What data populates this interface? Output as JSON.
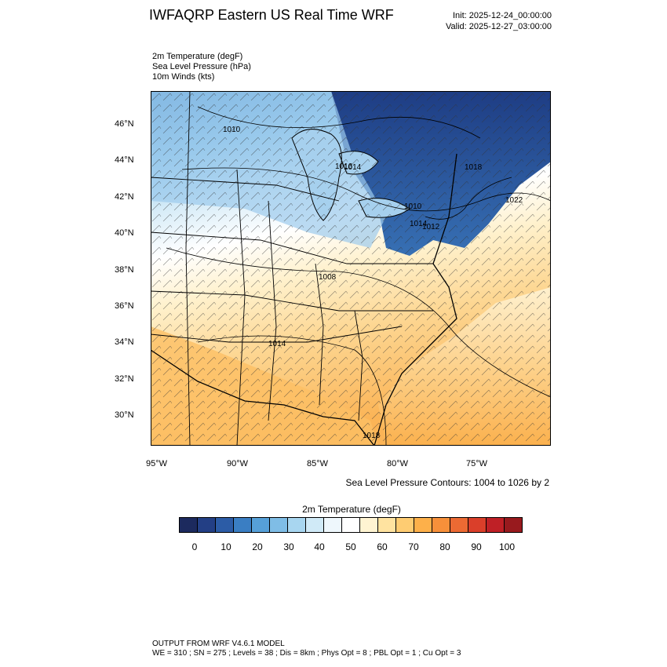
{
  "title": "IWFAQRP Eastern US Real Time WRF",
  "init": "Init: 2025-12-24_00:00:00",
  "valid": "Valid: 2025-12-27_03:00:00",
  "fields": [
    "2m Temperature   (degF)",
    "Sea Level Pressure   (hPa)",
    "10m Winds   (kts)"
  ],
  "lat_labels": [
    "46°N",
    "44°N",
    "42°N",
    "40°N",
    "38°N",
    "36°N",
    "34°N",
    "32°N",
    "30°N"
  ],
  "lon_labels": [
    "95°W",
    "90°W",
    "85°W",
    "80°W",
    "75°W"
  ],
  "isobar_labels": [
    "1010",
    "1014",
    "1008",
    "1012",
    "1016",
    "1018",
    "1022",
    "1010",
    "1014",
    "1014",
    "1018"
  ],
  "slp_note": "Sea Level Pressure Contours: 1004 to 1026 by 2",
  "colorbar": {
    "title": "2m Temperature  (degF)",
    "colors": [
      "#1c2a5e",
      "#233f85",
      "#2c5ca6",
      "#3a7ec3",
      "#56a0d8",
      "#7fbde6",
      "#a8d6f0",
      "#d0eaf7",
      "#eef7fc",
      "#ffffff",
      "#fff4d2",
      "#ffe3a0",
      "#fecc72",
      "#fdb04a",
      "#f7903a",
      "#ec6a33",
      "#da3f2a",
      "#bf2026",
      "#981a1e"
    ],
    "labels": [
      "0",
      "10",
      "20",
      "30",
      "40",
      "50",
      "60",
      "70",
      "80",
      "90",
      "100"
    ]
  },
  "footer_line1": "OUTPUT FROM WRF V4.6.1 MODEL",
  "footer_line2": "WE = 310 ; SN = 275 ; Levels = 38 ; Dis = 8km ; Phys Opt = 8 ; PBL Opt = 1 ; Cu Opt = 3"
}
